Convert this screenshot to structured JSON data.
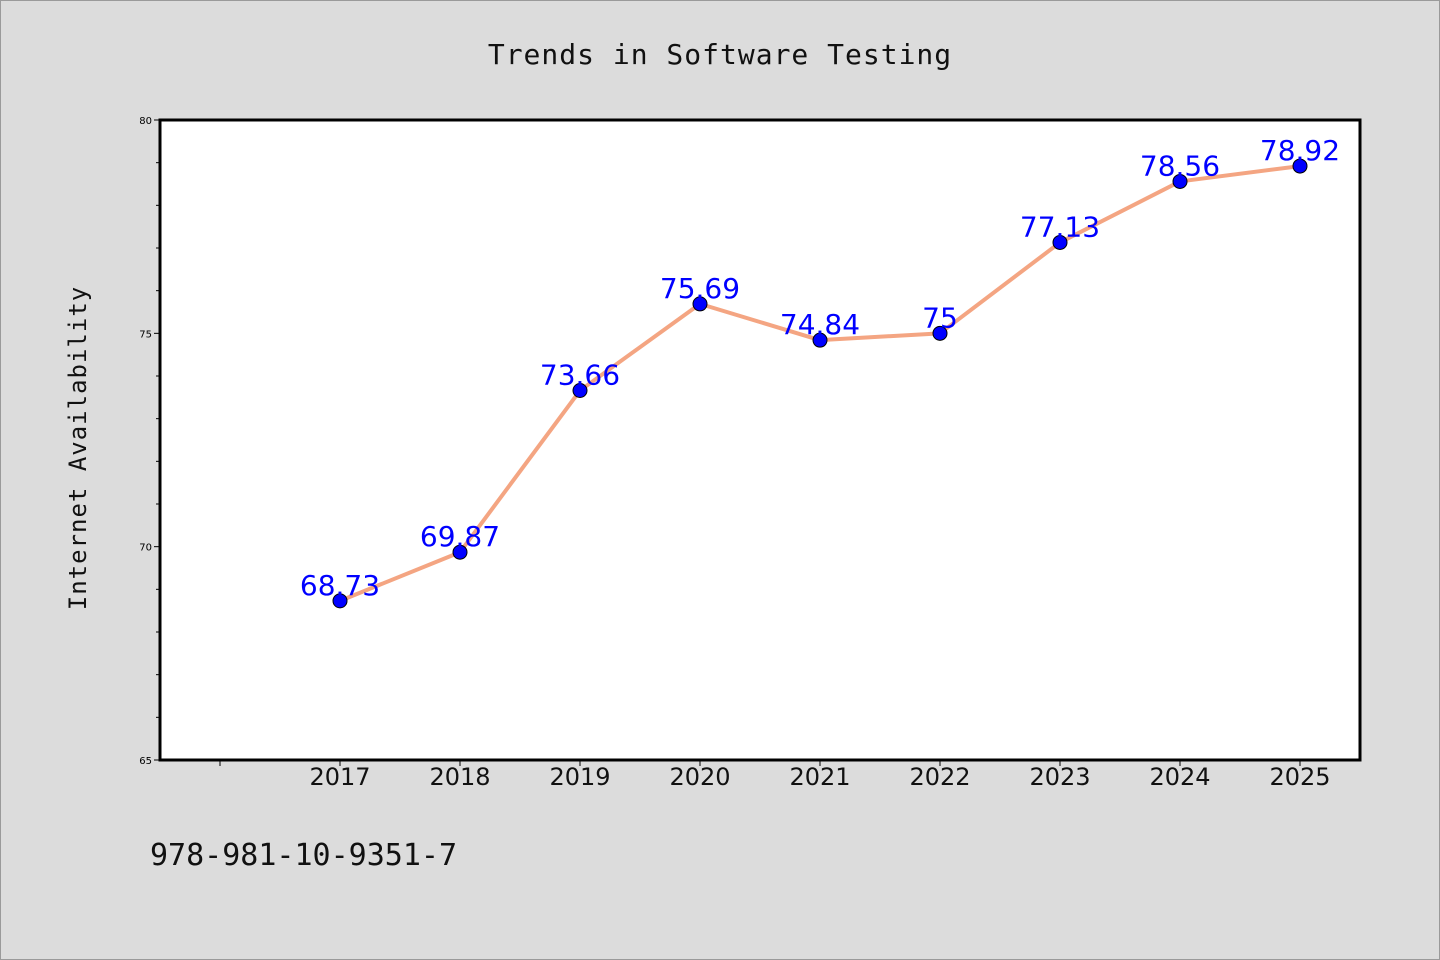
{
  "chart_data": {
    "type": "line",
    "title": "Trends in Software Testing",
    "xlabel": "",
    "ylabel": "Internet Availability",
    "categories": [
      "2017",
      "2018",
      "2019",
      "2020",
      "2021",
      "2022",
      "2023",
      "2024",
      "2025"
    ],
    "series": [
      {
        "values": [
          68.73,
          69.87,
          73.66,
          75.69,
          74.84,
          75,
          77.13,
          78.56,
          78.92
        ],
        "labels": [
          "68.73",
          "69.87",
          "73.66",
          "75.69",
          "74.84",
          "75",
          "77.13",
          "78.56",
          "78.92"
        ],
        "line_color": "#f4a582",
        "marker_color": "#0000ff"
      }
    ],
    "ylim": [
      65,
      80
    ],
    "yticks": [
      65,
      70,
      75,
      80
    ],
    "ytick_labels": [
      "65",
      "70",
      "75",
      "80"
    ],
    "grid": false,
    "legend": "none",
    "label_color": "#0000ff"
  },
  "footer": {
    "isbn": "978-981-10-9351-7"
  }
}
